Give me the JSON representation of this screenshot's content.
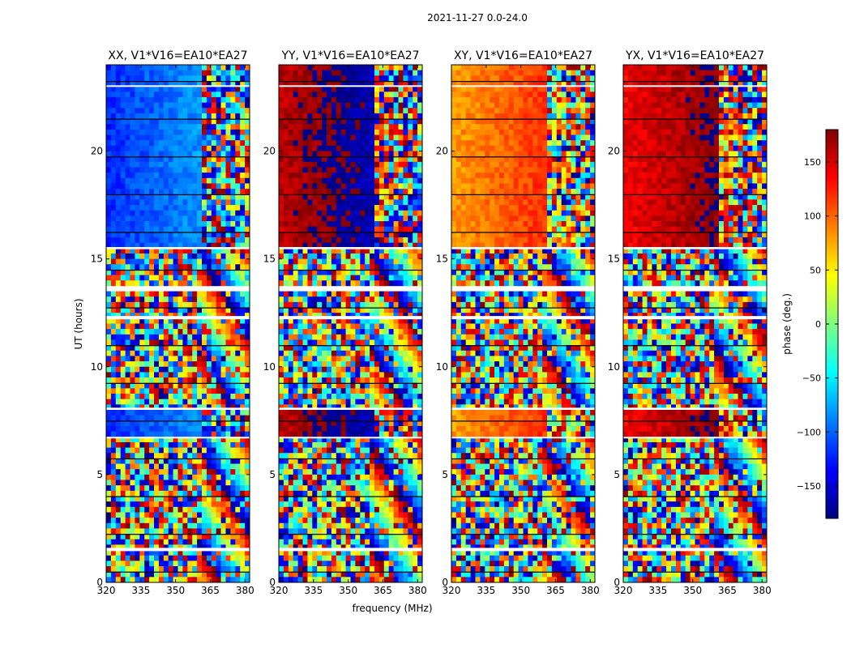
{
  "chart_data": {
    "type": "heatmap",
    "title": "2021-11-27 0.0-24.0",
    "xlabel": "frequency (MHz)",
    "ylabel": "UT (hours)",
    "xlim": [
      320,
      382
    ],
    "ylim": [
      0,
      24
    ],
    "x_ticks": [
      320,
      335,
      350,
      365,
      380
    ],
    "y_ticks": [
      0,
      5,
      10,
      15,
      20
    ],
    "panels": [
      {
        "title": "XX, V1*V16=EA10*EA27",
        "dominant_phase": -120
      },
      {
        "title": "YY, V1*V16=EA10*EA27",
        "dominant_phase": 160
      },
      {
        "title": "XY, V1*V16=EA10*EA27",
        "dominant_phase": 80
      },
      {
        "title": "YX, V1*V16=EA10*EA27",
        "dominant_phase": 140
      }
    ],
    "colorbar": {
      "label": "phase (deg.)",
      "range": [
        -180,
        180
      ],
      "ticks": [
        150,
        100,
        50,
        0,
        -50,
        -100,
        -150
      ],
      "tick_labels": [
        "150",
        "100",
        "50",
        "0",
        "−50",
        "−100",
        "−150"
      ]
    },
    "colormap": [
      "#00007f",
      "#0000ff",
      "#007fff",
      "#00ffff",
      "#7fff7f",
      "#ffff00",
      "#ff7f00",
      "#ff0000",
      "#7f0000"
    ]
  }
}
